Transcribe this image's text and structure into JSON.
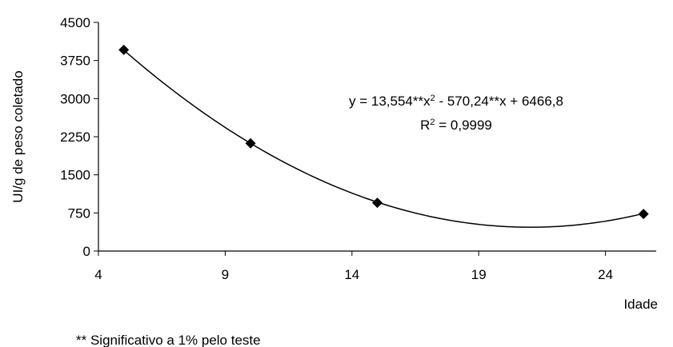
{
  "chart_data": {
    "type": "scatter",
    "title": "",
    "xlabel": "Idade",
    "ylabel": "UI/g de peso coletado",
    "xlim": [
      4,
      26
    ],
    "ylim": [
      0,
      4500
    ],
    "xticks": [
      "4",
      "9",
      "14",
      "19",
      "24"
    ],
    "xtick_values": [
      4,
      9,
      14,
      19,
      24
    ],
    "yticks": [
      "0",
      "750",
      "1500",
      "2250",
      "3000",
      "3750",
      "4500"
    ],
    "ytick_values": [
      0,
      750,
      1500,
      2250,
      3000,
      3750,
      4500
    ],
    "grid": false,
    "series": [
      {
        "marker": "diamond",
        "x": [
          5,
          10,
          15,
          25.5
        ],
        "y": [
          3960,
          2120,
          950,
          730
        ]
      }
    ],
    "trendline": {
      "type": "polynomial",
      "coefficients": [
        13.554,
        -570.24,
        6466.8
      ]
    },
    "annotations": {
      "equation_prefix": "y = 13,554**x",
      "equation_exp1": "2",
      "equation_suffix": " - 570,24**x + 6466,8",
      "r2_prefix": "R",
      "r2_exp": "2",
      "r2_suffix": " = 0,9999"
    },
    "footnote": "** Significativo a 1% pelo teste"
  }
}
